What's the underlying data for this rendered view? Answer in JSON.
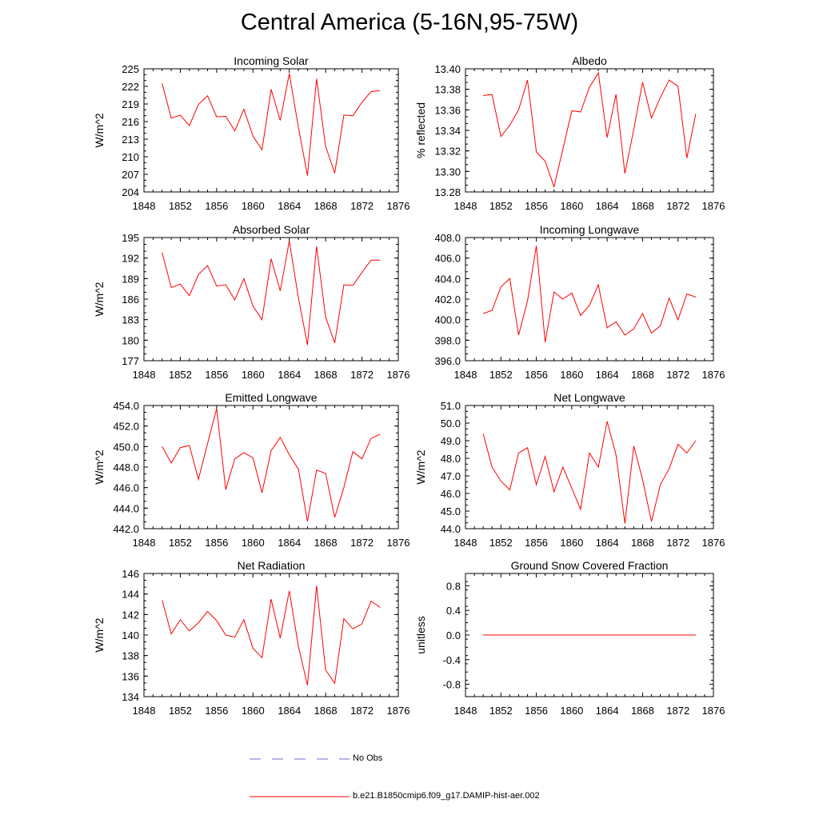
{
  "figure": {
    "title": "Central America (5-16N,95-75W)"
  },
  "legend": {
    "entries": [
      {
        "label": "No Obs",
        "color": "#6b6bd6",
        "dash": true
      },
      {
        "label": "b.e21.B1850cmip6.f09_g17.DAMIP-hist-aer.002",
        "color": "#ff0000",
        "dash": false
      }
    ]
  },
  "chart_data": [
    {
      "type": "line",
      "title": "Incoming Solar",
      "xlabel": "",
      "ylabel": "W/m^2",
      "xlim": [
        1848,
        1876
      ],
      "ylim": [
        204,
        225
      ],
      "xticks": [
        "1848",
        "1852",
        "1856",
        "1860",
        "1864",
        "1868",
        "1872",
        "1876"
      ],
      "yticks": [
        "204",
        "207",
        "210",
        "213",
        "216",
        "219",
        "222",
        "225"
      ],
      "x": [
        1850,
        1851,
        1852,
        1853,
        1854,
        1855,
        1856,
        1857,
        1858,
        1859,
        1860,
        1861,
        1862,
        1863,
        1864,
        1865,
        1866,
        1867,
        1868,
        1869,
        1870,
        1871,
        1872,
        1873,
        1874
      ],
      "series": [
        {
          "name": "b.e21.B1850cmip6.f09_g17.DAMIP-hist-aer.002",
          "color": "#ff0000",
          "values": [
            222.5,
            216.6,
            217.1,
            215.3,
            218.9,
            220.4,
            216.8,
            216.9,
            214.4,
            218.1,
            213.5,
            211.2,
            221.5,
            216.2,
            224.2,
            215.0,
            206.8,
            223.3,
            211.8,
            207.2,
            217.1,
            217.0,
            219.3,
            221.1,
            221.3
          ]
        }
      ]
    },
    {
      "type": "line",
      "title": "Albedo",
      "xlabel": "",
      "ylabel": "% reflected",
      "xlim": [
        1848,
        1876
      ],
      "ylim": [
        13.28,
        13.4
      ],
      "xticks": [
        "1848",
        "1852",
        "1856",
        "1860",
        "1864",
        "1868",
        "1872",
        "1876"
      ],
      "yticks": [
        "13.28",
        "13.30",
        "13.32",
        "13.34",
        "13.36",
        "13.38",
        "13.40"
      ],
      "x": [
        1850,
        1851,
        1852,
        1853,
        1854,
        1855,
        1856,
        1857,
        1858,
        1859,
        1860,
        1861,
        1862,
        1863,
        1864,
        1865,
        1866,
        1867,
        1868,
        1869,
        1870,
        1871,
        1872,
        1873,
        1874
      ],
      "series": [
        {
          "name": "b.e21.B1850cmip6.f09_g17.DAMIP-hist-aer.002",
          "color": "#ff0000",
          "values": [
            13.374,
            13.375,
            13.334,
            13.345,
            13.36,
            13.389,
            13.319,
            13.31,
            13.285,
            13.322,
            13.359,
            13.358,
            13.382,
            13.396,
            13.333,
            13.375,
            13.298,
            13.341,
            13.387,
            13.352,
            13.372,
            13.389,
            13.383,
            13.313,
            13.356
          ]
        }
      ]
    },
    {
      "type": "line",
      "title": "Absorbed Solar",
      "xlabel": "",
      "ylabel": "W/m^2",
      "xlim": [
        1848,
        1876
      ],
      "ylim": [
        177,
        195
      ],
      "xticks": [
        "1848",
        "1852",
        "1856",
        "1860",
        "1864",
        "1868",
        "1872",
        "1876"
      ],
      "yticks": [
        "177",
        "180",
        "183",
        "186",
        "189",
        "192",
        "195"
      ],
      "x": [
        1850,
        1851,
        1852,
        1853,
        1854,
        1855,
        1856,
        1857,
        1858,
        1859,
        1860,
        1861,
        1862,
        1863,
        1864,
        1865,
        1866,
        1867,
        1868,
        1869,
        1870,
        1871,
        1872,
        1873,
        1874
      ],
      "series": [
        {
          "name": "b.e21.B1850cmip6.f09_g17.DAMIP-hist-aer.002",
          "color": "#ff0000",
          "values": [
            192.8,
            187.7,
            188.2,
            186.5,
            189.6,
            190.9,
            187.9,
            188.1,
            185.9,
            189.0,
            185.0,
            183.0,
            191.9,
            187.2,
            194.5,
            186.2,
            179.3,
            193.7,
            183.4,
            179.6,
            188.1,
            188.0,
            189.9,
            191.7,
            191.7
          ]
        }
      ]
    },
    {
      "type": "line",
      "title": "Incoming Longwave",
      "xlabel": "",
      "ylabel": "",
      "xlim": [
        1848,
        1876
      ],
      "ylim": [
        396,
        408
      ],
      "xticks": [
        "1848",
        "1852",
        "1856",
        "1860",
        "1864",
        "1868",
        "1872",
        "1876"
      ],
      "yticks": [
        "396.0",
        "398.0",
        "400.0",
        "402.0",
        "404.0",
        "406.0",
        "408.0"
      ],
      "x": [
        1850,
        1851,
        1852,
        1853,
        1854,
        1855,
        1856,
        1857,
        1858,
        1859,
        1860,
        1861,
        1862,
        1863,
        1864,
        1865,
        1866,
        1867,
        1868,
        1869,
        1870,
        1871,
        1872,
        1873,
        1874
      ],
      "series": [
        {
          "name": "b.e21.B1850cmip6.f09_g17.DAMIP-hist-aer.002",
          "color": "#ff0000",
          "values": [
            400.6,
            400.9,
            403.2,
            404.0,
            398.5,
            401.8,
            407.2,
            397.8,
            402.7,
            402.0,
            402.6,
            400.4,
            401.4,
            403.4,
            399.2,
            399.8,
            398.5,
            399.1,
            400.6,
            398.7,
            399.4,
            402.1,
            400.0,
            402.5,
            402.2
          ]
        }
      ]
    },
    {
      "type": "line",
      "title": "Emitted Longwave",
      "xlabel": "",
      "ylabel": "W/m^2",
      "xlim": [
        1848,
        1876
      ],
      "ylim": [
        442,
        454
      ],
      "xticks": [
        "1848",
        "1852",
        "1856",
        "1860",
        "1864",
        "1868",
        "1872",
        "1876"
      ],
      "yticks": [
        "442.0",
        "444.0",
        "446.0",
        "448.0",
        "450.0",
        "452.0",
        "454.0"
      ],
      "x": [
        1850,
        1851,
        1852,
        1853,
        1854,
        1855,
        1856,
        1857,
        1858,
        1859,
        1860,
        1861,
        1862,
        1863,
        1864,
        1865,
        1866,
        1867,
        1868,
        1869,
        1870,
        1871,
        1872,
        1873,
        1874
      ],
      "series": [
        {
          "name": "b.e21.B1850cmip6.f09_g17.DAMIP-hist-aer.002",
          "color": "#ff0000",
          "values": [
            450.0,
            448.4,
            449.9,
            450.1,
            446.8,
            450.3,
            453.7,
            445.8,
            448.8,
            449.4,
            448.9,
            445.5,
            449.6,
            450.9,
            449.2,
            447.8,
            442.7,
            447.7,
            447.4,
            443.1,
            446.0,
            449.5,
            448.8,
            450.8,
            451.2
          ]
        }
      ]
    },
    {
      "type": "line",
      "title": "Net Longwave",
      "xlabel": "",
      "ylabel": "W/m^2",
      "xlim": [
        1848,
        1876
      ],
      "ylim": [
        44,
        51
      ],
      "xticks": [
        "1848",
        "1852",
        "1856",
        "1860",
        "1864",
        "1868",
        "1872",
        "1876"
      ],
      "yticks": [
        "44.0",
        "45.0",
        "46.0",
        "47.0",
        "48.0",
        "49.0",
        "50.0",
        "51.0"
      ],
      "x": [
        1850,
        1851,
        1852,
        1853,
        1854,
        1855,
        1856,
        1857,
        1858,
        1859,
        1860,
        1861,
        1862,
        1863,
        1864,
        1865,
        1866,
        1867,
        1868,
        1869,
        1870,
        1871,
        1872,
        1873,
        1874
      ],
      "series": [
        {
          "name": "b.e21.B1850cmip6.f09_g17.DAMIP-hist-aer.002",
          "color": "#ff0000",
          "values": [
            49.4,
            47.5,
            46.7,
            46.2,
            48.3,
            48.6,
            46.5,
            48.1,
            46.1,
            47.5,
            46.3,
            45.1,
            48.3,
            47.5,
            50.1,
            48.2,
            44.3,
            48.7,
            46.8,
            44.4,
            46.5,
            47.4,
            48.8,
            48.3,
            49.0
          ]
        }
      ]
    },
    {
      "type": "line",
      "title": "Net Radiation",
      "xlabel": "",
      "ylabel": "W/m^2",
      "xlim": [
        1848,
        1876
      ],
      "ylim": [
        134,
        146
      ],
      "xticks": [
        "1848",
        "1852",
        "1856",
        "1860",
        "1864",
        "1868",
        "1872",
        "1876"
      ],
      "yticks": [
        "134",
        "136",
        "138",
        "140",
        "142",
        "144",
        "146"
      ],
      "x": [
        1850,
        1851,
        1852,
        1853,
        1854,
        1855,
        1856,
        1857,
        1858,
        1859,
        1860,
        1861,
        1862,
        1863,
        1864,
        1865,
        1866,
        1867,
        1868,
        1869,
        1870,
        1871,
        1872,
        1873,
        1874
      ],
      "series": [
        {
          "name": "b.e21.B1850cmip6.f09_g17.DAMIP-hist-aer.002",
          "color": "#ff0000",
          "values": [
            143.4,
            140.1,
            141.5,
            140.4,
            141.2,
            142.3,
            141.4,
            140.0,
            139.8,
            141.5,
            138.7,
            137.8,
            143.5,
            139.7,
            144.3,
            138.9,
            135.1,
            144.8,
            136.6,
            135.3,
            141.6,
            140.6,
            141.1,
            143.3,
            142.7
          ]
        }
      ]
    },
    {
      "type": "line",
      "title": "Ground Snow Covered Fraction",
      "xlabel": "",
      "ylabel": "unitless",
      "xlim": [
        1848,
        1876
      ],
      "ylim": [
        -1.0,
        1.0
      ],
      "xticks": [
        "1848",
        "1852",
        "1856",
        "1860",
        "1864",
        "1868",
        "1872",
        "1876"
      ],
      "yticks": [
        "-0.8",
        "-0.4",
        "0.0",
        "0.4",
        "0.8"
      ],
      "ytick_values": [
        -0.8,
        -0.4,
        0.0,
        0.4,
        0.8
      ],
      "x": [
        1850,
        1851,
        1852,
        1853,
        1854,
        1855,
        1856,
        1857,
        1858,
        1859,
        1860,
        1861,
        1862,
        1863,
        1864,
        1865,
        1866,
        1867,
        1868,
        1869,
        1870,
        1871,
        1872,
        1873,
        1874
      ],
      "series": [
        {
          "name": "b.e21.B1850cmip6.f09_g17.DAMIP-hist-aer.002",
          "color": "#ff0000",
          "values": [
            0,
            0,
            0,
            0,
            0,
            0,
            0,
            0,
            0,
            0,
            0,
            0,
            0,
            0,
            0,
            0,
            0,
            0,
            0,
            0,
            0,
            0,
            0,
            0,
            0
          ]
        }
      ]
    }
  ]
}
